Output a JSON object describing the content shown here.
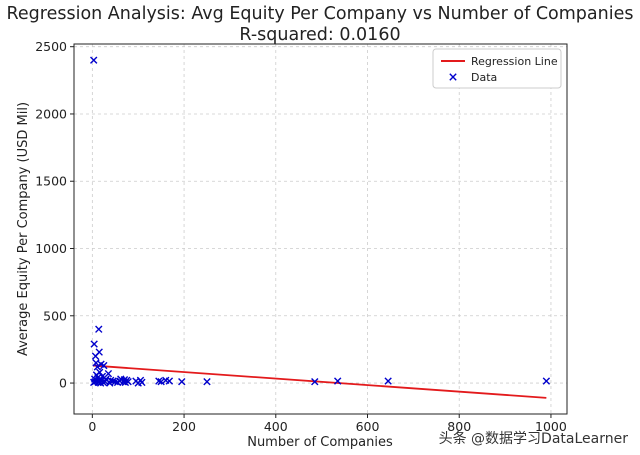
{
  "chart_data": {
    "type": "scatter",
    "title": "Regression Analysis: Avg Equity Per Company vs Number of Companies",
    "subtitle": "R-squared: 0.0160",
    "xlabel": "Number of Companies",
    "ylabel": "Average Equity Per Company (USD Mil)",
    "xlim": [
      -40,
      1035
    ],
    "ylim": [
      -230,
      2520
    ],
    "xticks": [
      0,
      200,
      400,
      600,
      800,
      1000
    ],
    "yticks": [
      0,
      500,
      1000,
      1500,
      2000,
      2500
    ],
    "grid": true,
    "legend_position": "top-right",
    "series": [
      {
        "name": "Regression Line",
        "kind": "line",
        "color": "#e31a1c",
        "x": [
          2,
          990
        ],
        "y": [
          130,
          -110
        ]
      },
      {
        "name": "Data",
        "kind": "scatter",
        "marker": "x",
        "color": "#0000cc",
        "x": [
          3,
          3,
          4,
          5,
          6,
          7,
          8,
          9,
          10,
          11,
          12,
          13,
          14,
          15,
          15,
          16,
          17,
          18,
          19,
          20,
          22,
          24,
          25,
          28,
          30,
          35,
          38,
          40,
          45,
          50,
          55,
          60,
          62,
          68,
          70,
          72,
          75,
          78,
          95,
          100,
          105,
          108,
          145,
          150,
          160,
          168,
          195,
          250,
          485,
          535,
          645,
          990
        ],
        "y": [
          2400,
          5,
          290,
          30,
          10,
          200,
          150,
          60,
          15,
          120,
          40,
          5,
          400,
          230,
          10,
          80,
          25,
          0,
          140,
          20,
          50,
          5,
          130,
          10,
          30,
          70,
          0,
          20,
          15,
          10,
          5,
          15,
          30,
          10,
          25,
          5,
          20,
          10,
          15,
          0,
          20,
          5,
          15,
          10,
          20,
          15,
          10,
          10,
          10,
          15,
          15,
          15
        ]
      }
    ]
  },
  "watermark": "头条 @数据学习DataLearner"
}
